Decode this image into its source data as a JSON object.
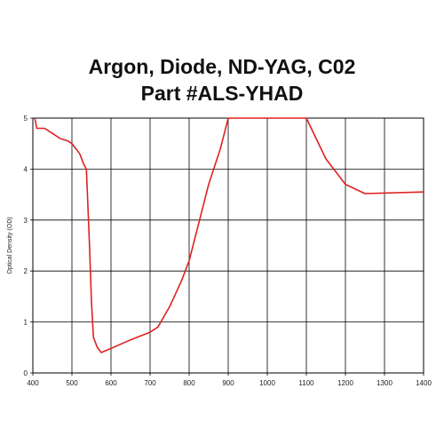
{
  "header": {
    "title_line1": "Argon, Diode, ND-YAG, C02",
    "title_line2": "Part #ALS-YHAD"
  },
  "chart_data": {
    "type": "line",
    "title": "Argon, Diode, ND-YAG, C02",
    "subtitle": "Part #ALS-YHAD",
    "xlabel": "",
    "ylabel": "Optical Density (OD)",
    "xlim": [
      400,
      1400
    ],
    "ylim": [
      0,
      5
    ],
    "xticks": [
      400,
      500,
      600,
      700,
      800,
      900,
      1000,
      1100,
      1200,
      1300,
      1400
    ],
    "yticks": [
      0,
      1,
      2,
      3,
      4,
      5
    ],
    "grid": true,
    "line_color": "#e02020",
    "series": [
      {
        "values": [
          [
            405,
            5.0
          ],
          [
            410,
            4.8
          ],
          [
            430,
            4.8
          ],
          [
            450,
            4.7
          ],
          [
            470,
            4.6
          ],
          [
            490,
            4.55
          ],
          [
            500,
            4.5
          ],
          [
            510,
            4.4
          ],
          [
            520,
            4.3
          ],
          [
            530,
            4.1
          ],
          [
            537,
            4.0
          ],
          [
            545,
            2.5
          ],
          [
            550,
            1.4
          ],
          [
            555,
            0.7
          ],
          [
            565,
            0.5
          ],
          [
            575,
            0.4
          ],
          [
            600,
            0.48
          ],
          [
            650,
            0.65
          ],
          [
            700,
            0.8
          ],
          [
            720,
            0.9
          ],
          [
            750,
            1.3
          ],
          [
            780,
            1.8
          ],
          [
            800,
            2.2
          ],
          [
            820,
            2.8
          ],
          [
            850,
            3.7
          ],
          [
            880,
            4.4
          ],
          [
            900,
            5.0
          ],
          [
            1100,
            5.0
          ],
          [
            1150,
            4.2
          ],
          [
            1200,
            3.7
          ],
          [
            1250,
            3.52
          ],
          [
            1400,
            3.55
          ]
        ]
      }
    ]
  }
}
